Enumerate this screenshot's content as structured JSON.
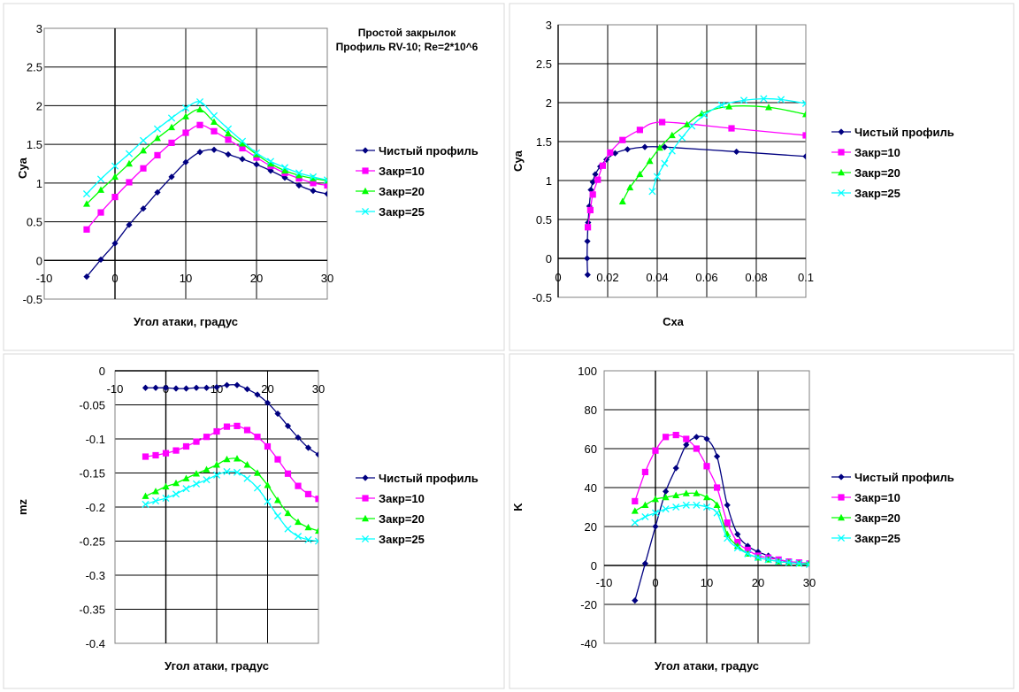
{
  "figure_title": [
    "Простой закрылок",
    "Профиль RV-10; Re=2*10^6"
  ],
  "legend": [
    "Чистый профиль",
    "Закр=10",
    "Закр=20",
    "Закр=25"
  ],
  "colors": {
    "clean": "#000080",
    "f10": "#FF00FF",
    "f20": "#00FF00",
    "f25": "#00FFFF",
    "grid": "#000000",
    "frame": "#bdbdbd"
  },
  "markers": [
    "diamond",
    "square",
    "triangle",
    "x"
  ],
  "chart_data": [
    {
      "id": "cya_alpha",
      "type": "line",
      "xlabel": "Угол атаки, градус",
      "ylabel": "Cya",
      "xlim": [
        -10,
        30
      ],
      "ylim": [
        -0.5,
        3
      ],
      "xticks": [
        "-10",
        "0",
        "10",
        "20",
        "30"
      ],
      "yticks": [
        "-0.5",
        "0",
        "0.5",
        "1",
        "1.5",
        "2",
        "2.5",
        "3"
      ],
      "series": [
        {
          "name": "Чистый профиль",
          "x": [
            -4,
            -2,
            0,
            2,
            4,
            6,
            8,
            10,
            12,
            14,
            16,
            18,
            20,
            22,
            24,
            26,
            28,
            30
          ],
          "y": [
            -0.21,
            0.01,
            0.22,
            0.46,
            0.67,
            0.88,
            1.08,
            1.27,
            1.4,
            1.43,
            1.37,
            1.31,
            1.24,
            1.16,
            1.07,
            0.97,
            0.9,
            0.86
          ]
        },
        {
          "name": "Закр=10",
          "x": [
            -4,
            -2,
            0,
            2,
            4,
            6,
            8,
            10,
            12,
            14,
            16,
            18,
            20,
            22,
            24,
            26,
            28,
            30
          ],
          "y": [
            0.4,
            0.62,
            0.82,
            1.01,
            1.19,
            1.36,
            1.52,
            1.65,
            1.75,
            1.67,
            1.56,
            1.45,
            1.33,
            1.22,
            1.13,
            1.06,
            1.0,
            0.97
          ]
        },
        {
          "name": "Закр=20",
          "x": [
            -4,
            -2,
            0,
            2,
            4,
            6,
            8,
            10,
            12,
            14,
            16,
            18,
            20,
            22,
            24,
            26,
            28,
            30
          ],
          "y": [
            0.73,
            0.91,
            1.08,
            1.25,
            1.42,
            1.58,
            1.72,
            1.86,
            1.95,
            1.79,
            1.64,
            1.51,
            1.37,
            1.25,
            1.16,
            1.1,
            1.06,
            1.03
          ]
        },
        {
          "name": "Закр=25",
          "x": [
            -4,
            -2,
            0,
            2,
            4,
            6,
            8,
            10,
            12,
            14,
            16,
            18,
            20,
            22,
            24,
            26,
            28,
            30
          ],
          "y": [
            0.86,
            1.05,
            1.22,
            1.38,
            1.55,
            1.7,
            1.84,
            1.97,
            2.05,
            1.87,
            1.7,
            1.54,
            1.39,
            1.28,
            1.2,
            1.13,
            1.08,
            1.04
          ]
        }
      ]
    },
    {
      "id": "cya_cxa",
      "type": "line",
      "xlabel": "Cxa",
      "ylabel": "Cya",
      "xlim": [
        0,
        0.1
      ],
      "ylim": [
        -0.5,
        3
      ],
      "xticks": [
        "0",
        "0.02",
        "0.04",
        "0.06",
        "0.08",
        "0.1"
      ],
      "yticks": [
        "-0.5",
        "0",
        "0.5",
        "1",
        "1.5",
        "2",
        "2.5",
        "3"
      ],
      "series": [
        {
          "name": "Чистый профиль",
          "x": [
            0.0119,
            0.0117,
            0.0118,
            0.0121,
            0.0126,
            0.0132,
            0.014,
            0.015,
            0.017,
            0.0195,
            0.023,
            0.028,
            0.035,
            0.043,
            0.072,
            0.1
          ],
          "y": [
            -0.21,
            0.0,
            0.22,
            0.46,
            0.67,
            0.88,
            0.98,
            1.08,
            1.18,
            1.27,
            1.35,
            1.4,
            1.43,
            1.43,
            1.37,
            1.31
          ]
        },
        {
          "name": "Закр=10",
          "x": [
            0.012,
            0.013,
            0.014,
            0.016,
            0.018,
            0.021,
            0.026,
            0.033,
            0.042,
            0.07,
            0.1
          ],
          "y": [
            0.4,
            0.62,
            0.82,
            1.01,
            1.19,
            1.36,
            1.52,
            1.65,
            1.75,
            1.67,
            1.58
          ]
        },
        {
          "name": "Закр=20",
          "x": [
            0.026,
            0.029,
            0.033,
            0.037,
            0.041,
            0.046,
            0.052,
            0.058,
            0.069,
            0.085,
            0.1
          ],
          "y": [
            0.73,
            0.91,
            1.08,
            1.25,
            1.42,
            1.58,
            1.72,
            1.86,
            1.95,
            1.94,
            1.85
          ]
        },
        {
          "name": "Закр=25",
          "x": [
            0.038,
            0.04,
            0.043,
            0.046,
            0.05,
            0.054,
            0.059,
            0.066,
            0.075,
            0.083,
            0.09,
            0.1
          ],
          "y": [
            0.86,
            1.05,
            1.22,
            1.38,
            1.55,
            1.7,
            1.84,
            1.97,
            2.03,
            2.05,
            2.04,
            1.99
          ]
        }
      ]
    },
    {
      "id": "mz_alpha",
      "type": "line",
      "xlabel": "Угол атаки, градус",
      "ylabel": "mz",
      "xlim": [
        -10,
        30
      ],
      "ylim": [
        -0.4,
        0
      ],
      "xticks": [
        "-10",
        "0",
        "10",
        "20",
        "30"
      ],
      "yticks": [
        "-0.4",
        "-0.35",
        "-0.3",
        "-0.25",
        "-0.2",
        "-0.15",
        "-0.1",
        "-0.05",
        "0"
      ],
      "series": [
        {
          "name": "Чистый профиль",
          "x": [
            -4,
            -2,
            0,
            2,
            4,
            6,
            8,
            10,
            12,
            14,
            16,
            18,
            20,
            22,
            24,
            26,
            28,
            30
          ],
          "y": [
            -0.025,
            -0.025,
            -0.025,
            -0.026,
            -0.026,
            -0.025,
            -0.025,
            -0.024,
            -0.021,
            -0.021,
            -0.027,
            -0.035,
            -0.047,
            -0.063,
            -0.081,
            -0.098,
            -0.113,
            -0.123
          ]
        },
        {
          "name": "Закр=10",
          "x": [
            -4,
            -2,
            0,
            2,
            4,
            6,
            8,
            10,
            12,
            14,
            16,
            18,
            20,
            22,
            24,
            26,
            28,
            30
          ],
          "y": [
            -0.126,
            -0.124,
            -0.121,
            -0.117,
            -0.111,
            -0.104,
            -0.097,
            -0.089,
            -0.082,
            -0.081,
            -0.087,
            -0.097,
            -0.111,
            -0.13,
            -0.151,
            -0.169,
            -0.181,
            -0.188
          ]
        },
        {
          "name": "Закр=20",
          "x": [
            -4,
            -2,
            0,
            2,
            4,
            6,
            8,
            10,
            12,
            14,
            16,
            18,
            20,
            22,
            24,
            26,
            28,
            30
          ],
          "y": [
            -0.184,
            -0.177,
            -0.17,
            -0.165,
            -0.158,
            -0.151,
            -0.145,
            -0.138,
            -0.13,
            -0.129,
            -0.138,
            -0.15,
            -0.168,
            -0.19,
            -0.209,
            -0.222,
            -0.23,
            -0.235
          ]
        },
        {
          "name": "Закр=25",
          "x": [
            -4,
            -2,
            0,
            2,
            4,
            6,
            8,
            10,
            12,
            14,
            16,
            18,
            20,
            22,
            24,
            26,
            28,
            30
          ],
          "y": [
            -0.196,
            -0.191,
            -0.187,
            -0.181,
            -0.173,
            -0.166,
            -0.16,
            -0.153,
            -0.148,
            -0.149,
            -0.158,
            -0.172,
            -0.192,
            -0.213,
            -0.232,
            -0.243,
            -0.248,
            -0.25
          ]
        }
      ]
    },
    {
      "id": "k_alpha",
      "type": "line",
      "xlabel": "Угол атаки, градус",
      "ylabel": "K",
      "xlim": [
        -10,
        30
      ],
      "ylim": [
        -40,
        100
      ],
      "xticks": [
        "-10",
        "0",
        "10",
        "20",
        "30"
      ],
      "yticks": [
        "-40",
        "-20",
        "0",
        "20",
        "40",
        "60",
        "80",
        "100"
      ],
      "series": [
        {
          "name": "Чистый профиль",
          "x": [
            -4,
            -2,
            0,
            2,
            4,
            6,
            8,
            10,
            12,
            14,
            16,
            18,
            20,
            22,
            24,
            26,
            28,
            30
          ],
          "y": [
            -18,
            1,
            20,
            38,
            50,
            62,
            66,
            65,
            56,
            31,
            16,
            10,
            7,
            5,
            3,
            2,
            1.5,
            1
          ]
        },
        {
          "name": "Закр=10",
          "x": [
            -4,
            -2,
            0,
            2,
            4,
            6,
            8,
            10,
            12,
            14,
            16,
            18,
            20,
            22,
            24,
            26,
            28,
            30
          ],
          "y": [
            33,
            48,
            59,
            66,
            67,
            65,
            60,
            51,
            40,
            22,
            12,
            8,
            5,
            4,
            3,
            2,
            1.5,
            1
          ]
        },
        {
          "name": "Закр=20",
          "x": [
            -4,
            -2,
            0,
            2,
            4,
            6,
            8,
            10,
            12,
            14,
            16,
            18,
            20,
            22,
            24,
            26,
            28,
            30
          ],
          "y": [
            28,
            31,
            34,
            35,
            36,
            37,
            37,
            35,
            31,
            16,
            10,
            6,
            4,
            3,
            2,
            1.5,
            1,
            1
          ]
        },
        {
          "name": "Закр=25",
          "x": [
            -4,
            -2,
            0,
            2,
            4,
            6,
            8,
            10,
            12,
            14,
            16,
            18,
            20,
            22,
            24,
            26,
            28,
            30
          ],
          "y": [
            22,
            25,
            27,
            29,
            30,
            31,
            31,
            30,
            27,
            14,
            9,
            6,
            4,
            3,
            2,
            1.5,
            1,
            0.5
          ]
        }
      ]
    }
  ]
}
